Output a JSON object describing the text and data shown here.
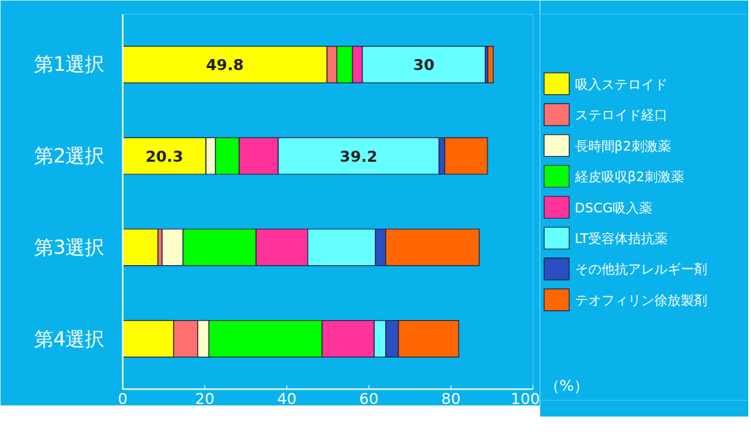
{
  "chart_data": {
    "type": "bar",
    "orientation": "horizontal",
    "stacked": true,
    "categories": [
      "第1選択",
      "第2選択",
      "第3選択",
      "第4選択"
    ],
    "xlabel": "（%）",
    "xlim": [
      0,
      100
    ],
    "xticks": [
      0,
      20,
      40,
      60,
      80,
      100
    ],
    "grid": false,
    "legend": "right",
    "series": [
      {
        "name": "吸入ステロイド",
        "color": "#ffff00",
        "values": [
          49.8,
          20.3,
          8.6,
          12.4
        ],
        "value_labels": [
          "49.8",
          "20.3",
          null,
          null
        ]
      },
      {
        "name": "ステロイド経口",
        "color": "#ff7070",
        "values": [
          2.4,
          0,
          1.0,
          5.9
        ]
      },
      {
        "name": "長時間β2刺激薬",
        "color": "#ffffcc",
        "values": [
          0,
          2.3,
          5.1,
          2.7
        ]
      },
      {
        "name": "経皮吸収β2刺激薬",
        "color": "#00ff00",
        "values": [
          3.8,
          5.8,
          17.8,
          27.6
        ]
      },
      {
        "name": "DSCG吸入薬",
        "color": "#ff3399",
        "values": [
          2.4,
          9.5,
          12.6,
          12.7
        ]
      },
      {
        "name": "LT受容体拮抗薬",
        "color": "#66ffff",
        "values": [
          30,
          39.2,
          16.5,
          2.8
        ],
        "value_labels": [
          "30",
          "39.2",
          null,
          null
        ]
      },
      {
        "name": "その他抗アレルギー剤",
        "color": "#2a4fc0",
        "values": [
          0.6,
          1.4,
          2.5,
          3.1
        ]
      },
      {
        "name": "テオフィリン徐放製剤",
        "color": "#ff6600",
        "values": [
          1.3,
          10.4,
          22.8,
          14.7
        ]
      }
    ]
  }
}
